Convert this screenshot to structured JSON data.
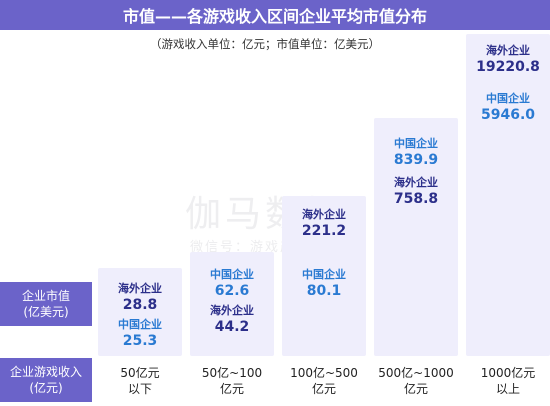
{
  "header": {
    "title": "市值——各游戏收入区间企业平均市值分布",
    "subtitle": "（游戏收入单位：亿元；市值单位：亿美元）"
  },
  "row_headers": {
    "market_cap": [
      "企业市值",
      "(亿美元)"
    ],
    "revenue": [
      "企业游戏收入",
      "(亿元)"
    ]
  },
  "watermark": {
    "logo": "伽马数据",
    "line": "微信号：游戏产业报告"
  },
  "chart_data": {
    "type": "table",
    "title": "市值——各游戏收入区间企业平均市值分布",
    "subtitle": "（游戏收入单位：亿元；市值单位：亿美元）",
    "categories": [
      [
        "50亿元",
        "以下"
      ],
      [
        "50亿~100",
        "亿元"
      ],
      [
        "100亿~500",
        "亿元"
      ],
      [
        "500亿~1000",
        "亿元"
      ],
      [
        "1000亿元",
        "以上"
      ]
    ],
    "series": [
      {
        "name": "海外企业",
        "values": [
          28.8,
          44.2,
          221.2,
          758.8,
          19220.8
        ],
        "labels": [
          "28.8",
          "44.2",
          "221.2",
          "758.8",
          "19220.8"
        ],
        "color": "#2c2f8a"
      },
      {
        "name": "中国企业",
        "values": [
          25.3,
          62.6,
          80.1,
          839.9,
          5946.0
        ],
        "labels": [
          "25.3",
          "62.6",
          "80.1",
          "839.9",
          "5946.0"
        ],
        "color": "#2a7ad2"
      }
    ],
    "columns": [
      {
        "entries": [
          {
            "label": "海外企业",
            "value": "28.8",
            "tone": "navy"
          },
          {
            "label": "中国企业",
            "value": "25.3",
            "tone": "blue"
          }
        ]
      },
      {
        "entries": [
          {
            "label": "中国企业",
            "value": "62.6",
            "tone": "blue"
          },
          {
            "label": "海外企业",
            "value": "44.2",
            "tone": "navy"
          }
        ]
      },
      {
        "entries": [
          {
            "label": "海外企业",
            "value": "221.2",
            "tone": "navy"
          },
          {
            "label": "中国企业",
            "value": "80.1",
            "tone": "blue"
          }
        ]
      },
      {
        "entries": [
          {
            "label": "中国企业",
            "value": "839.9",
            "tone": "blue"
          },
          {
            "label": "海外企业",
            "value": "758.8",
            "tone": "navy"
          }
        ]
      },
      {
        "entries": [
          {
            "label": "海外企业",
            "value": "19220.8",
            "tone": "navy"
          },
          {
            "label": "中国企业",
            "value": "5946.0",
            "tone": "blue"
          }
        ]
      }
    ]
  },
  "colors": {
    "header": "#6b63c9",
    "column": "#efeefc",
    "china": "#2a7ad2",
    "overseas": "#2c2f8a"
  }
}
